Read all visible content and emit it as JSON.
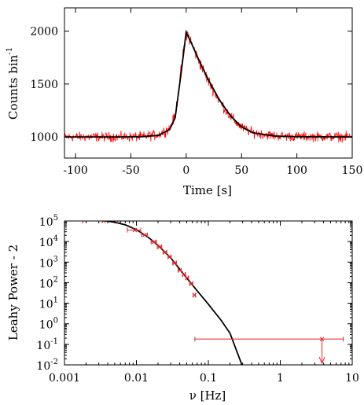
{
  "chart_data": [
    {
      "type": "line",
      "xlabel": "Time [s]",
      "ylabel": "Counts bin",
      "ylabel_superscript": "-1",
      "xlim": [
        -110,
        150
      ],
      "ylim": [
        800,
        2220
      ],
      "xticks": [
        -100,
        -50,
        0,
        50,
        100,
        150
      ],
      "yticks": [
        1000,
        1500,
        2000
      ],
      "series": [
        {
          "color": "#ff0000",
          "style": "noisy-histogram",
          "x": [
            -110,
            -60,
            -40,
            -25,
            -15,
            -10,
            -5,
            0,
            5,
            10,
            20,
            30,
            40,
            50,
            60,
            80,
            100,
            150
          ],
          "y": [
            1000,
            1000,
            1003,
            1020,
            1080,
            1200,
            1600,
            2000,
            1880,
            1750,
            1530,
            1340,
            1190,
            1090,
            1040,
            1010,
            1003,
            1000
          ]
        },
        {
          "color": "#000000",
          "style": "model-fit",
          "x": [
            -110,
            -60,
            -40,
            -25,
            -15,
            -10,
            -5,
            0,
            5,
            10,
            20,
            30,
            40,
            50,
            60,
            80,
            100,
            150
          ],
          "y": [
            1000,
            1000,
            1002,
            1015,
            1070,
            1180,
            1570,
            1990,
            1880,
            1760,
            1540,
            1350,
            1200,
            1095,
            1040,
            1008,
            1002,
            1000
          ]
        }
      ]
    },
    {
      "type": "scatter",
      "xlabel": "ν [Hz]",
      "ylabel": "Leahy Power - 2",
      "xscale": "log",
      "yscale": "log",
      "xlim": [
        0.001,
        10
      ],
      "ylim": [
        0.01,
        100000
      ],
      "xticks": [
        0.001,
        0.01,
        0.1,
        1,
        10
      ],
      "xticklabels": [
        "0.001",
        "0.01",
        "0.1",
        "1",
        "10"
      ],
      "yticks": [
        0.01,
        0.1,
        1,
        10,
        100,
        1000,
        10000,
        100000
      ],
      "yticklabels": [
        {
          "base": "10",
          "exp": "-2"
        },
        {
          "base": "10",
          "exp": "-1"
        },
        {
          "base": "10",
          "exp": "0"
        },
        {
          "base": "10",
          "exp": "1"
        },
        {
          "base": "10",
          "exp": "2"
        },
        {
          "base": "10",
          "exp": "3"
        },
        {
          "base": "10",
          "exp": "4"
        },
        {
          "base": "10",
          "exp": "5"
        }
      ],
      "series": [
        {
          "color": "#e0262a",
          "style": "binned-points-with-errors",
          "points": [
            {
              "x": 0.0035,
              "xlo": 0.0018,
              "xhi": 0.0055,
              "y": 100000
            },
            {
              "x": 0.0095,
              "xlo": 0.0075,
              "xhi": 0.0115,
              "y": 36000
            },
            {
              "x": 0.013,
              "xlo": 0.0118,
              "xhi": 0.0142,
              "y": 21000
            },
            {
              "x": 0.0175,
              "xlo": 0.016,
              "xhi": 0.019,
              "y": 9500
            },
            {
              "x": 0.021,
              "xlo": 0.0195,
              "xhi": 0.0225,
              "y": 5500
            },
            {
              "x": 0.025,
              "xlo": 0.0235,
              "xhi": 0.0265,
              "y": 3000
            },
            {
              "x": 0.029,
              "xlo": 0.0275,
              "xhi": 0.0305,
              "y": 1800
            },
            {
              "x": 0.034,
              "xlo": 0.032,
              "xhi": 0.036,
              "y": 900
            },
            {
              "x": 0.04,
              "xlo": 0.038,
              "xhi": 0.042,
              "y": 400
            },
            {
              "x": 0.046,
              "xlo": 0.044,
              "xhi": 0.048,
              "y": 250
            },
            {
              "x": 0.051,
              "xlo": 0.049,
              "xhi": 0.053,
              "y": 170
            },
            {
              "x": 0.058,
              "xlo": 0.055,
              "xhi": 0.061,
              "y": 90
            },
            {
              "x": 0.064,
              "xlo": 0.062,
              "xhi": 0.066,
              "y": 25
            }
          ],
          "upper_limit": {
            "x": 3.8,
            "xlo": 0.065,
            "xhi": 7.5,
            "y": 0.18,
            "arrow_to": 0.012
          }
        },
        {
          "color": "#000000",
          "style": "model-curve",
          "x": [
            0.0035,
            0.005,
            0.007,
            0.01,
            0.015,
            0.02,
            0.03,
            0.05,
            0.07,
            0.1,
            0.15,
            0.2,
            0.3
          ],
          "y": [
            105000,
            87000,
            65000,
            38000,
            15000,
            6500,
            1600,
            170,
            40,
            9,
            1.5,
            0.35,
            0.008
          ]
        }
      ]
    }
  ]
}
